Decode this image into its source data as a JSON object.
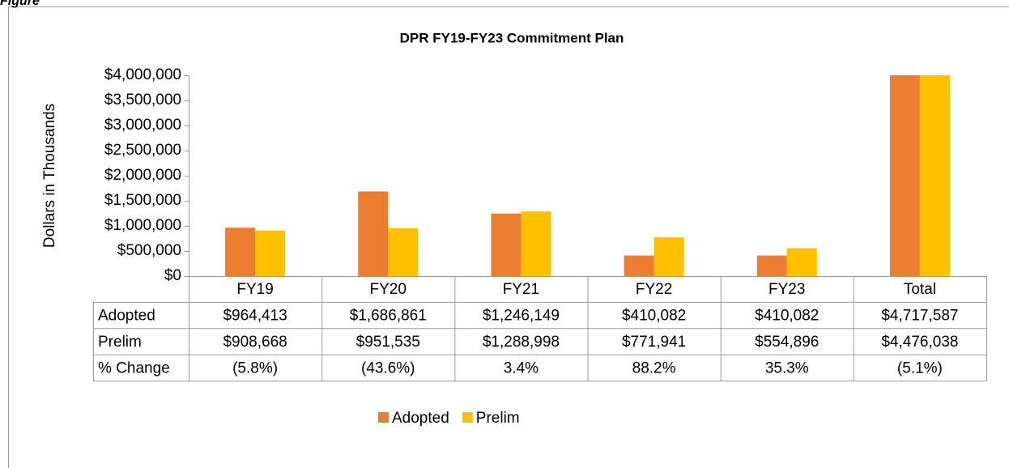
{
  "figure_label": "Figure",
  "chart_data": {
    "type": "bar",
    "title": "DPR FY19-FY23 Commitment Plan",
    "y_label": "Dollars in Thousands",
    "categories": [
      "FY19",
      "FY20",
      "FY21",
      "FY22",
      "FY23",
      "Total"
    ],
    "series": [
      {
        "name": "Adopted",
        "color": "#ed7d31",
        "values": [
          964413,
          1686861,
          1246149,
          410082,
          410082,
          4717587
        ],
        "value_labels": [
          "$964,413",
          "$1,686,861",
          "$1,246,149",
          "$410,082",
          "$410,082",
          "$4,717,587"
        ]
      },
      {
        "name": "Prelim",
        "color": "#ffc000",
        "values": [
          908668,
          951535,
          1288998,
          771941,
          554896,
          4476038
        ],
        "value_labels": [
          "$908,668",
          "$951,535",
          "$1,288,998",
          "$771,941",
          "$554,896",
          "$4,476,038"
        ]
      }
    ],
    "change": {
      "name": "% Change",
      "values": [
        -5.8,
        -43.6,
        3.4,
        88.2,
        35.3,
        -5.1
      ],
      "value_labels": [
        "(5.8%)",
        "(43.6%)",
        "3.4%",
        "88.2%",
        "35.3%",
        "(5.1%)"
      ]
    },
    "ylim": [
      0,
      4000000
    ],
    "yticks": [
      {
        "value": 0,
        "label": "$0"
      },
      {
        "value": 500000,
        "label": "$500,000"
      },
      {
        "value": 1000000,
        "label": "$1,000,000"
      },
      {
        "value": 1500000,
        "label": "$1,500,000"
      },
      {
        "value": 2000000,
        "label": "$2,000,000"
      },
      {
        "value": 2500000,
        "label": "$2,500,000"
      },
      {
        "value": 3000000,
        "label": "$3,000,000"
      },
      {
        "value": 3500000,
        "label": "$3,500,000"
      },
      {
        "value": 4000000,
        "label": "$4,000,000"
      }
    ],
    "legend": "bottom",
    "grid": false
  }
}
